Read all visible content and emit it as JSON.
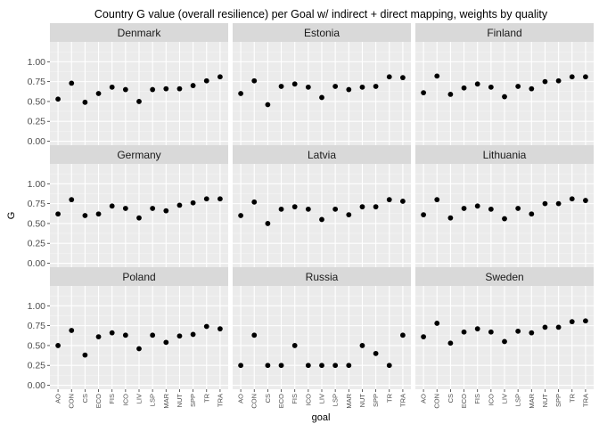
{
  "chart_data": {
    "type": "scatter",
    "title": "Country G value (overall resilience) per Goal w/ indirect + direct mapping, weights by quality",
    "xlabel": "goal",
    "ylabel": "G",
    "ylim": [
      -0.05,
      1.25
    ],
    "yticks": [
      0.0,
      0.25,
      0.5,
      0.75,
      1.0
    ],
    "ytick_labels": [
      "0.00",
      "0.25",
      "0.50",
      "0.75",
      "1.00"
    ],
    "categories": [
      "AO",
      "CON",
      "CS",
      "ECO",
      "FIS",
      "ICO",
      "LIV",
      "LSP",
      "MAR",
      "NUT",
      "SPP",
      "TR",
      "TRA"
    ],
    "grid": true,
    "colors": {
      "panel_background": "#ebebeb",
      "strip_background": "#d9d9d9",
      "grid_major": "#ffffff",
      "grid_minor": "#f5f5f5",
      "point": "#000000"
    },
    "panels": [
      {
        "name": "Denmark",
        "values": [
          0.53,
          0.73,
          0.49,
          0.6,
          0.68,
          0.65,
          0.5,
          0.65,
          0.66,
          0.66,
          0.7,
          0.76,
          0.81
        ]
      },
      {
        "name": "Estonia",
        "values": [
          0.6,
          0.76,
          0.46,
          0.69,
          0.72,
          0.68,
          0.55,
          0.69,
          0.65,
          0.68,
          0.69,
          0.81,
          0.8
        ]
      },
      {
        "name": "Finland",
        "values": [
          0.61,
          0.82,
          0.59,
          0.67,
          0.72,
          0.68,
          0.56,
          0.69,
          0.66,
          0.75,
          0.76,
          0.81,
          0.81
        ]
      },
      {
        "name": "Germany",
        "values": [
          0.62,
          0.8,
          0.6,
          0.62,
          0.72,
          0.69,
          0.57,
          0.69,
          0.66,
          0.73,
          0.76,
          0.81,
          0.81
        ]
      },
      {
        "name": "Latvia",
        "values": [
          0.6,
          0.77,
          0.5,
          0.68,
          0.71,
          0.68,
          0.55,
          0.68,
          0.61,
          0.71,
          0.71,
          0.8,
          0.78
        ]
      },
      {
        "name": "Lithuania",
        "values": [
          0.61,
          0.8,
          0.57,
          0.69,
          0.72,
          0.68,
          0.56,
          0.69,
          0.62,
          0.75,
          0.75,
          0.81,
          0.79
        ]
      },
      {
        "name": "Poland",
        "values": [
          0.5,
          0.69,
          0.38,
          0.61,
          0.66,
          0.63,
          0.46,
          0.63,
          0.54,
          0.62,
          0.64,
          0.74,
          0.71
        ]
      },
      {
        "name": "Russia",
        "values": [
          0.25,
          0.63,
          0.25,
          0.25,
          0.5,
          0.25,
          0.25,
          0.25,
          0.25,
          0.5,
          0.4,
          0.25,
          0.63
        ]
      },
      {
        "name": "Sweden",
        "values": [
          0.61,
          0.78,
          0.53,
          0.67,
          0.71,
          0.67,
          0.55,
          0.68,
          0.66,
          0.73,
          0.73,
          0.8,
          0.81
        ]
      }
    ]
  }
}
